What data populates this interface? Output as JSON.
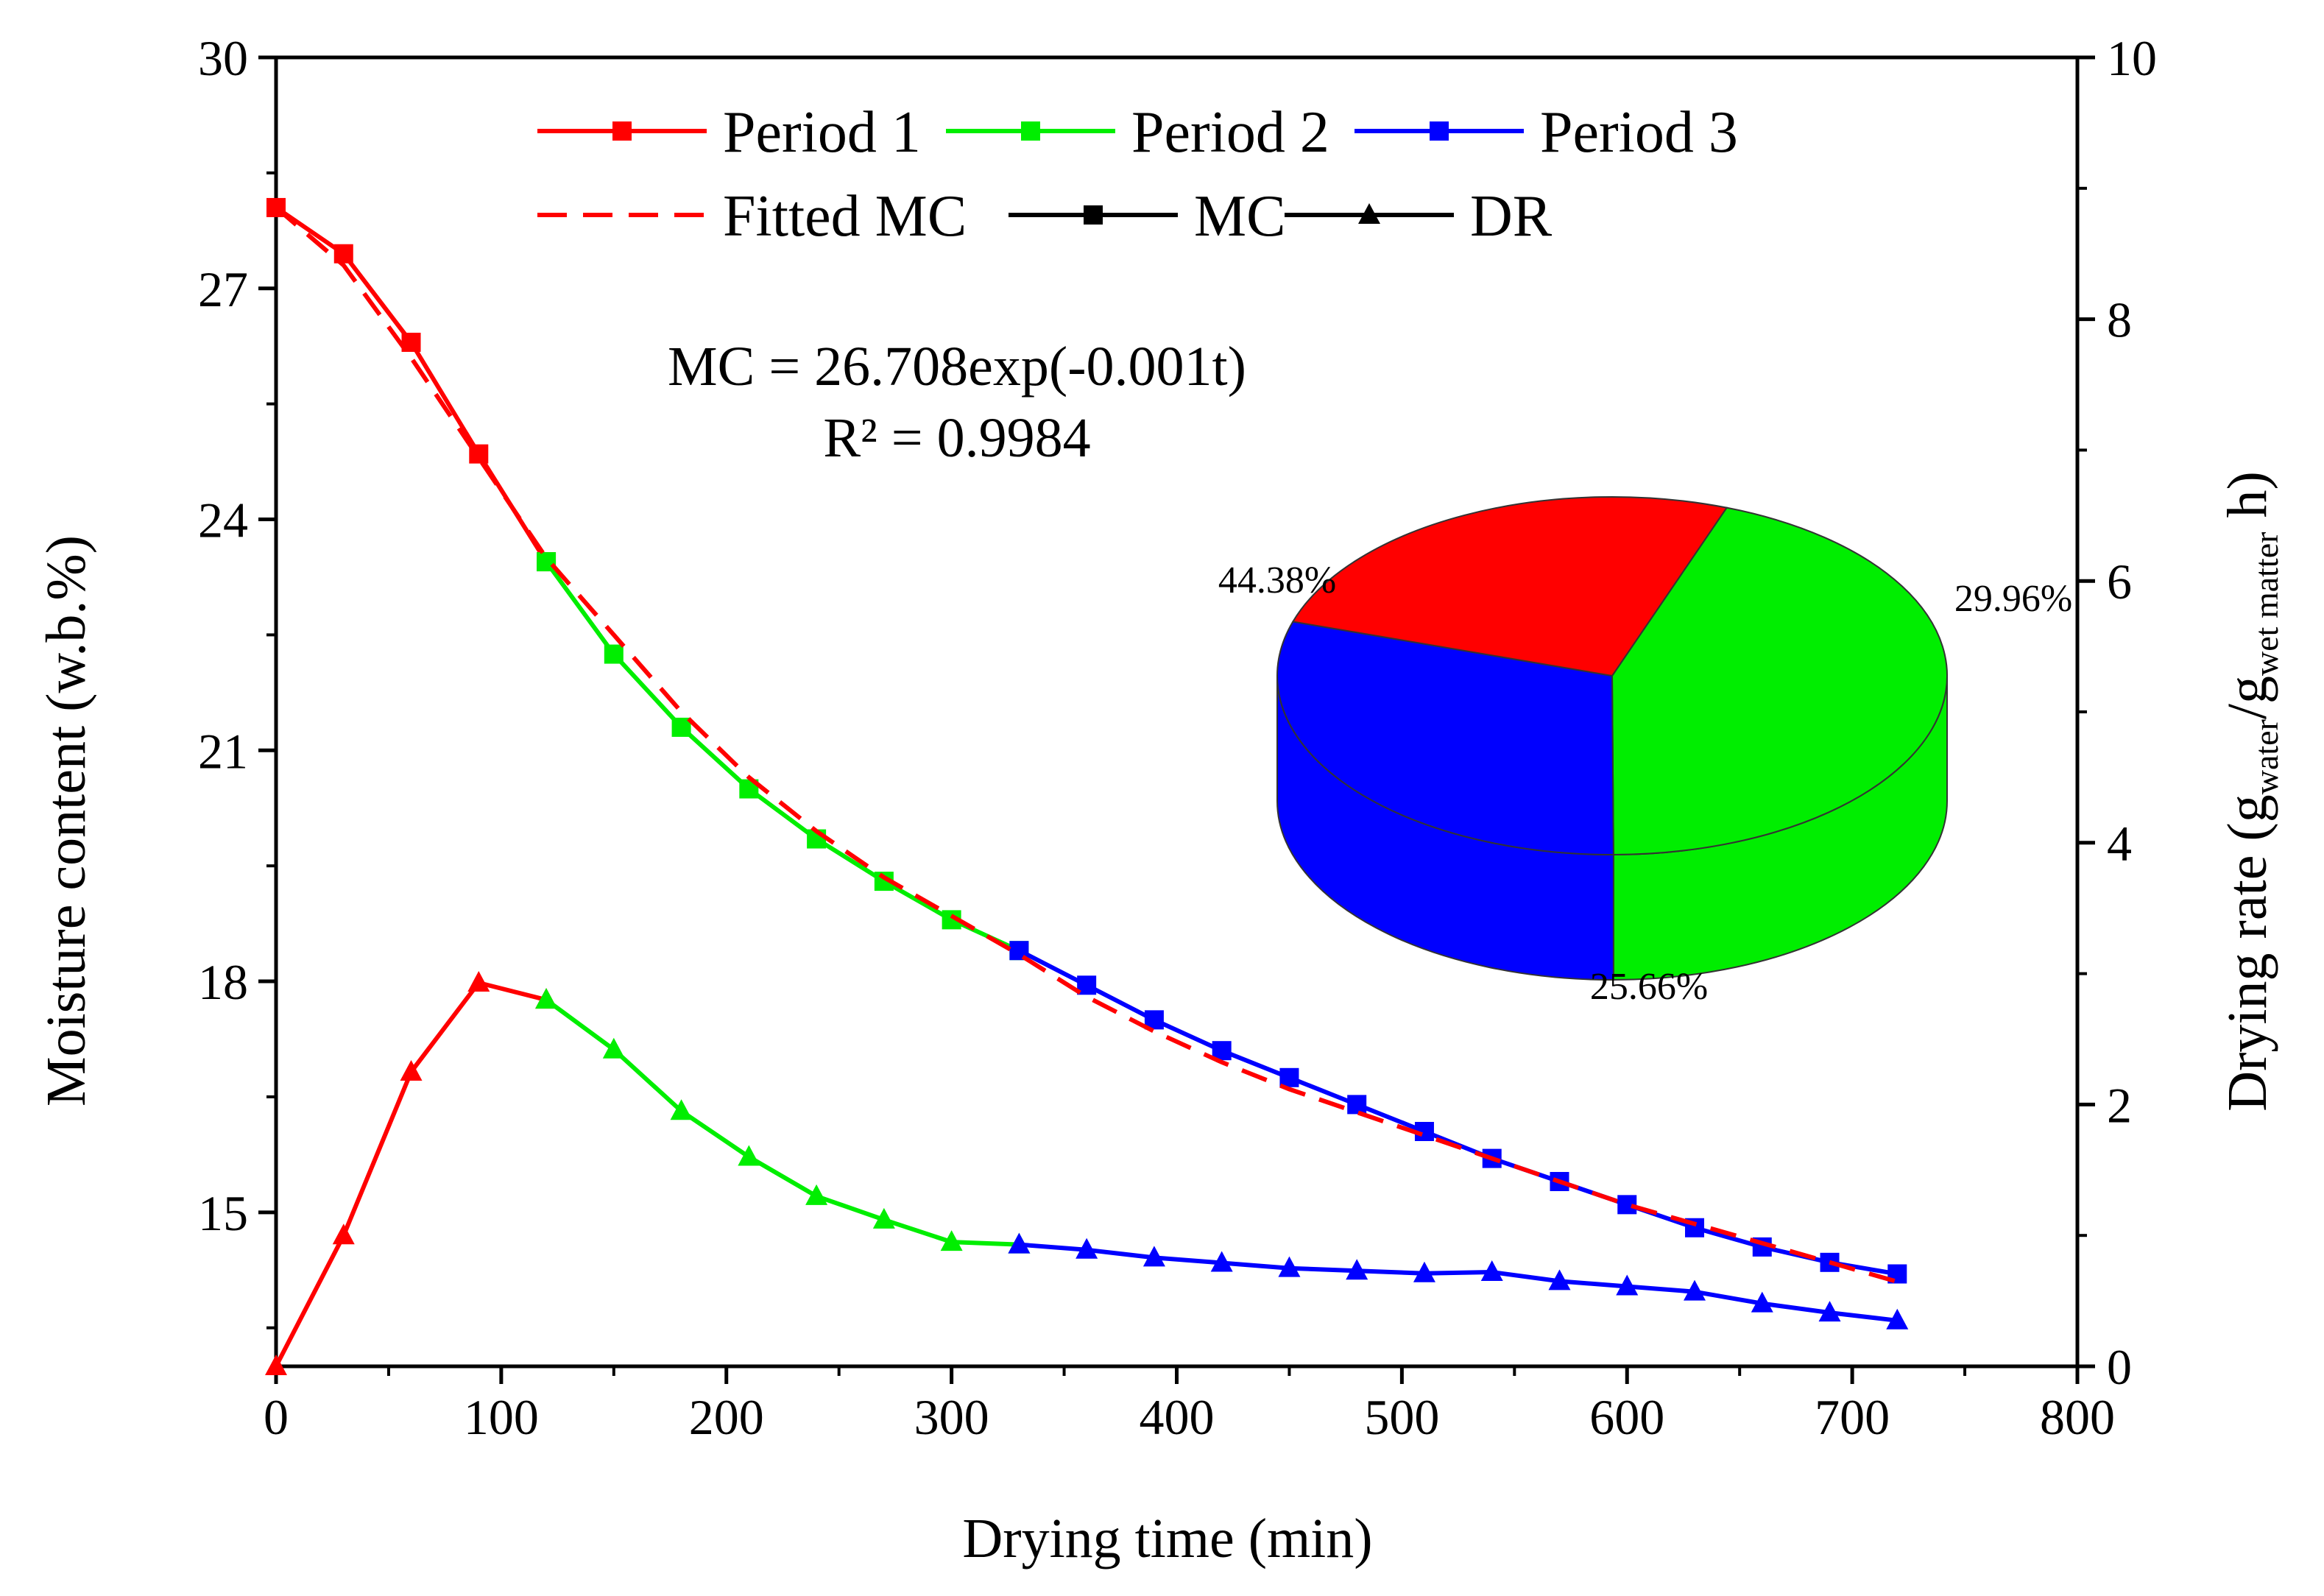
{
  "chart_data": {
    "type": "line",
    "x_axis": {
      "label": "Drying time (min)",
      "range": [
        0,
        800
      ],
      "ticks": [
        "0",
        "100",
        "200",
        "300",
        "400",
        "500",
        "600",
        "700",
        "800"
      ]
    },
    "y_left": {
      "label": "Moisture content (w.b.%)",
      "range": [
        13,
        30
      ],
      "ticks": [
        "15",
        "18",
        "21",
        "24",
        "27",
        "30"
      ]
    },
    "y_right": {
      "label_main": "Drying rate (g",
      "label_sub1": "water",
      "label_mid": "/g",
      "label_sub2": "wet matter",
      "label_end": " h)",
      "range": [
        0,
        10
      ],
      "ticks": [
        "0",
        "2",
        "4",
        "6",
        "8",
        "10"
      ]
    },
    "legend": {
      "placement": "top",
      "entries": [
        {
          "label": "Period 1",
          "color": "#ff0000",
          "marker": "square",
          "style": "solid"
        },
        {
          "label": "Period 2",
          "color": "#00ee00",
          "marker": "square",
          "style": "solid"
        },
        {
          "label": "Period 3",
          "color": "#0000ff",
          "marker": "square",
          "style": "solid"
        },
        {
          "label": "Fitted MC",
          "color": "#ff0000",
          "marker": "none",
          "style": "dashed"
        },
        {
          "label": "MC",
          "color": "#000000",
          "marker": "square",
          "style": "solid"
        },
        {
          "label": "DR",
          "color": "#000000",
          "marker": "triangle",
          "style": "solid"
        }
      ]
    },
    "annotations": {
      "equation": "MC = 26.708exp(-0.001t)",
      "r_squared": "R² = 0.9984"
    },
    "mc_series": [
      {
        "name": "Period 1",
        "color": "#ff0000",
        "x": [
          0,
          30,
          60,
          90,
          120
        ],
        "y": [
          28.05,
          27.45,
          26.3,
          24.85,
          23.45
        ]
      },
      {
        "name": "Period 2",
        "color": "#00ee00",
        "x": [
          120,
          150,
          180,
          210,
          240,
          270,
          300,
          330
        ],
        "y": [
          23.45,
          22.25,
          21.3,
          20.5,
          19.85,
          19.3,
          18.8,
          18.4
        ]
      },
      {
        "name": "Period 3",
        "color": "#0000ff",
        "x": [
          330,
          360,
          390,
          420,
          450,
          480,
          510,
          540,
          570,
          600,
          630,
          660,
          690,
          720
        ],
        "y": [
          18.4,
          17.95,
          17.5,
          17.1,
          16.75,
          16.4,
          16.05,
          15.7,
          15.4,
          15.1,
          14.8,
          14.55,
          14.35,
          14.2
        ]
      }
    ],
    "fitted_mc": {
      "name": "Fitted MC",
      "color": "#ff0000",
      "x": [
        0,
        30,
        60,
        90,
        120,
        150,
        180,
        210,
        240,
        270,
        300,
        330,
        360,
        390,
        420,
        450,
        480,
        510,
        540,
        570,
        600,
        630,
        660,
        690,
        720
      ],
      "y": [
        28.05,
        27.3,
        26.1,
        24.8,
        23.5,
        22.5,
        21.5,
        20.65,
        19.95,
        19.35,
        18.85,
        18.35,
        17.8,
        17.35,
        16.95,
        16.6,
        16.3,
        16.0,
        15.7,
        15.4,
        15.1,
        14.85,
        14.6,
        14.35,
        14.1
      ]
    },
    "dr_series": [
      {
        "name": "Period 1",
        "color": "#ff0000",
        "x": [
          0,
          30,
          60,
          90,
          120
        ],
        "y": [
          0.0,
          1.0,
          2.25,
          2.93,
          2.8
        ]
      },
      {
        "name": "Period 2",
        "color": "#00ee00",
        "x": [
          120,
          150,
          180,
          210,
          240,
          270,
          300,
          330
        ],
        "y": [
          2.8,
          2.42,
          1.95,
          1.6,
          1.3,
          1.12,
          0.95,
          0.93
        ]
      },
      {
        "name": "Period 3",
        "color": "#0000ff",
        "x": [
          330,
          360,
          390,
          420,
          450,
          480,
          510,
          540,
          570,
          600,
          630,
          660,
          690,
          720
        ],
        "y": [
          0.93,
          0.89,
          0.83,
          0.79,
          0.75,
          0.73,
          0.71,
          0.72,
          0.65,
          0.61,
          0.57,
          0.48,
          0.41,
          0.35
        ]
      }
    ],
    "pie": {
      "type": "pie",
      "slices": [
        {
          "label": "44.38%",
          "value": 44.38,
          "color": "#00ee00"
        },
        {
          "label": "29.96%",
          "value": 29.96,
          "color": "#0000ff"
        },
        {
          "label": "25.66%",
          "value": 25.66,
          "color": "#ff0000"
        }
      ]
    }
  }
}
